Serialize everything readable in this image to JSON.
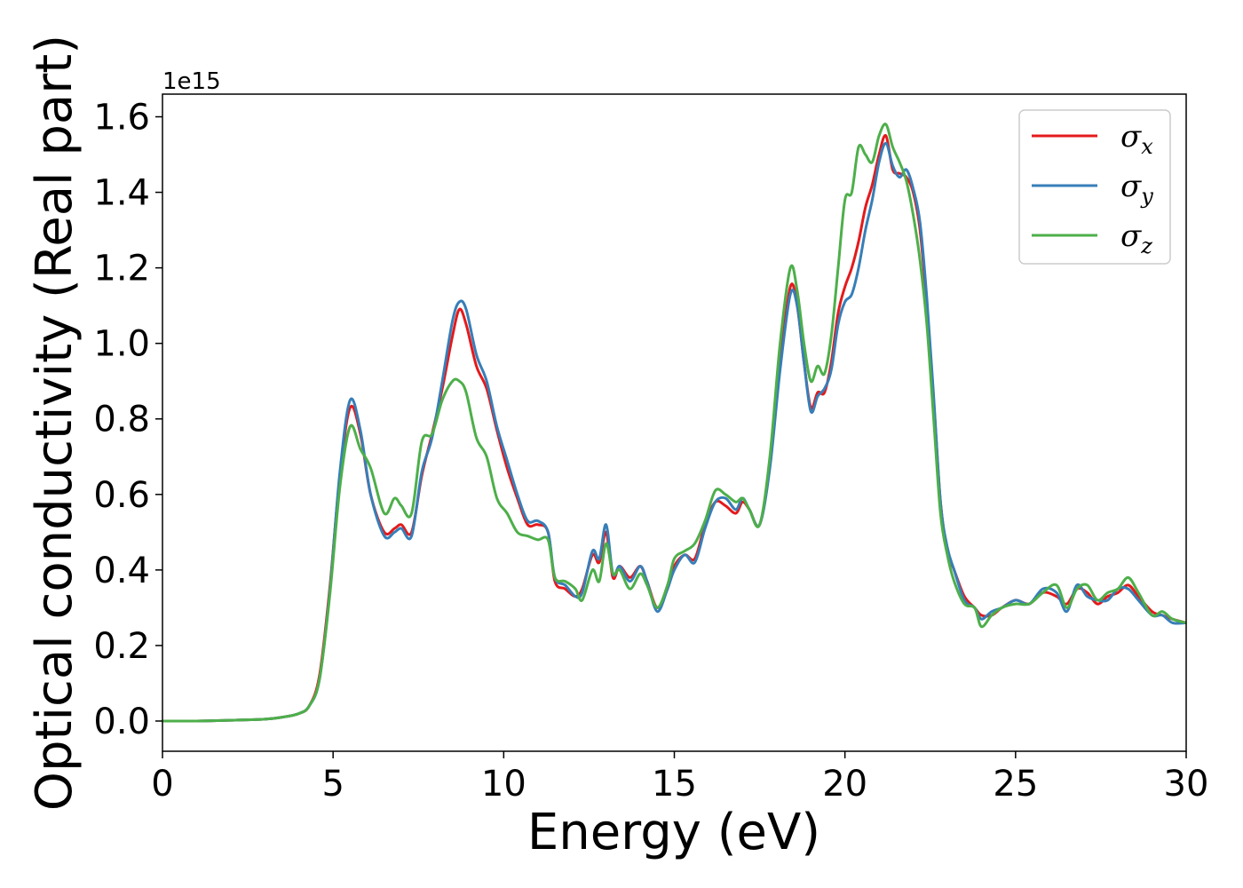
{
  "chart_data": {
    "type": "line",
    "xlabel": "Energy (eV)",
    "ylabel": "Optical conductivity (Real part)",
    "y_offset_label": "1e15",
    "xlim": [
      0,
      30
    ],
    "ylim": [
      -0.08,
      1.66
    ],
    "x_ticks": [
      0,
      5,
      10,
      15,
      20,
      25,
      30
    ],
    "x_tick_labels": [
      "0",
      "5",
      "10",
      "15",
      "20",
      "25",
      "30"
    ],
    "y_ticks": [
      0.0,
      0.2,
      0.4,
      0.6,
      0.8,
      1.0,
      1.2,
      1.4,
      1.6
    ],
    "y_tick_labels": [
      "0.0",
      "0.2",
      "0.4",
      "0.6",
      "0.8",
      "1.0",
      "1.2",
      "1.4",
      "1.6"
    ],
    "grid": false,
    "legend_position": "top-right",
    "x": [
      0,
      1,
      2,
      3,
      3.5,
      4,
      4.3,
      4.6,
      4.9,
      5.2,
      5.5,
      5.8,
      6.1,
      6.5,
      6.8,
      7.0,
      7.3,
      7.6,
      7.9,
      8.2,
      8.5,
      8.7,
      8.9,
      9.2,
      9.5,
      9.8,
      10.1,
      10.4,
      10.7,
      11.0,
      11.3,
      11.5,
      11.8,
      12.1,
      12.3,
      12.6,
      12.8,
      13.0,
      13.2,
      13.4,
      13.7,
      14.0,
      14.2,
      14.5,
      14.8,
      15.0,
      15.3,
      15.6,
      15.9,
      16.2,
      16.5,
      16.8,
      17.0,
      17.2,
      17.5,
      17.8,
      18.1,
      18.4,
      18.6,
      18.8,
      19.0,
      19.2,
      19.4,
      19.6,
      19.8,
      20.0,
      20.2,
      20.4,
      20.6,
      20.8,
      21.0,
      21.2,
      21.4,
      21.6,
      21.8,
      22.0,
      22.2,
      22.4,
      22.6,
      22.8,
      23.0,
      23.2,
      23.5,
      23.8,
      24.0,
      24.3,
      24.6,
      25.0,
      25.4,
      25.8,
      26.2,
      26.5,
      26.8,
      27.1,
      27.4,
      27.7,
      28.0,
      28.3,
      28.6,
      29.0,
      29.3,
      29.6,
      30.0
    ],
    "series": [
      {
        "name": "σx",
        "color": "#e41a1c",
        "values": [
          0.0,
          0.0,
          0.002,
          0.005,
          0.01,
          0.02,
          0.04,
          0.12,
          0.35,
          0.65,
          0.83,
          0.76,
          0.6,
          0.5,
          0.51,
          0.52,
          0.5,
          0.65,
          0.76,
          0.88,
          1.02,
          1.09,
          1.05,
          0.94,
          0.88,
          0.77,
          0.67,
          0.59,
          0.52,
          0.52,
          0.5,
          0.37,
          0.35,
          0.33,
          0.35,
          0.44,
          0.42,
          0.5,
          0.38,
          0.41,
          0.38,
          0.41,
          0.37,
          0.3,
          0.35,
          0.41,
          0.44,
          0.43,
          0.52,
          0.58,
          0.57,
          0.55,
          0.58,
          0.56,
          0.52,
          0.68,
          0.95,
          1.15,
          1.1,
          0.95,
          0.83,
          0.87,
          0.87,
          0.95,
          1.08,
          1.15,
          1.2,
          1.27,
          1.36,
          1.42,
          1.5,
          1.55,
          1.46,
          1.45,
          1.44,
          1.4,
          1.3,
          1.1,
          0.85,
          0.58,
          0.45,
          0.4,
          0.33,
          0.3,
          0.28,
          0.28,
          0.3,
          0.32,
          0.31,
          0.34,
          0.33,
          0.31,
          0.35,
          0.34,
          0.31,
          0.33,
          0.34,
          0.36,
          0.33,
          0.29,
          0.28,
          0.27,
          0.26
        ]
      },
      {
        "name": "σy",
        "color": "#377eb8",
        "values": [
          0.0,
          0.0,
          0.002,
          0.005,
          0.01,
          0.02,
          0.04,
          0.11,
          0.34,
          0.66,
          0.85,
          0.77,
          0.6,
          0.49,
          0.5,
          0.51,
          0.49,
          0.66,
          0.75,
          0.9,
          1.06,
          1.11,
          1.09,
          0.97,
          0.9,
          0.78,
          0.69,
          0.6,
          0.53,
          0.53,
          0.5,
          0.38,
          0.36,
          0.33,
          0.34,
          0.45,
          0.43,
          0.52,
          0.39,
          0.41,
          0.37,
          0.41,
          0.37,
          0.29,
          0.35,
          0.4,
          0.44,
          0.42,
          0.51,
          0.58,
          0.59,
          0.56,
          0.59,
          0.56,
          0.52,
          0.67,
          0.93,
          1.13,
          1.1,
          0.95,
          0.82,
          0.86,
          0.88,
          0.93,
          1.05,
          1.11,
          1.13,
          1.2,
          1.3,
          1.38,
          1.48,
          1.53,
          1.47,
          1.44,
          1.46,
          1.41,
          1.32,
          1.12,
          0.86,
          0.58,
          0.46,
          0.4,
          0.32,
          0.3,
          0.27,
          0.29,
          0.3,
          0.32,
          0.31,
          0.35,
          0.34,
          0.29,
          0.36,
          0.33,
          0.32,
          0.32,
          0.35,
          0.35,
          0.32,
          0.28,
          0.28,
          0.26,
          0.26
        ]
      },
      {
        "name": "σz",
        "color": "#4daf4a",
        "values": [
          0.0,
          0.0,
          0.002,
          0.005,
          0.01,
          0.02,
          0.04,
          0.11,
          0.33,
          0.62,
          0.78,
          0.72,
          0.67,
          0.55,
          0.59,
          0.57,
          0.55,
          0.74,
          0.76,
          0.85,
          0.9,
          0.9,
          0.87,
          0.75,
          0.7,
          0.59,
          0.55,
          0.5,
          0.49,
          0.48,
          0.48,
          0.38,
          0.37,
          0.35,
          0.32,
          0.4,
          0.37,
          0.47,
          0.39,
          0.4,
          0.35,
          0.39,
          0.36,
          0.3,
          0.36,
          0.43,
          0.45,
          0.47,
          0.53,
          0.61,
          0.6,
          0.58,
          0.59,
          0.56,
          0.52,
          0.7,
          1.0,
          1.2,
          1.14,
          1.0,
          0.9,
          0.94,
          0.92,
          1.02,
          1.2,
          1.38,
          1.4,
          1.52,
          1.5,
          1.48,
          1.55,
          1.58,
          1.52,
          1.48,
          1.43,
          1.34,
          1.22,
          1.05,
          0.8,
          0.55,
          0.44,
          0.37,
          0.31,
          0.3,
          0.25,
          0.28,
          0.3,
          0.31,
          0.31,
          0.34,
          0.36,
          0.3,
          0.35,
          0.36,
          0.32,
          0.34,
          0.35,
          0.38,
          0.34,
          0.28,
          0.29,
          0.27,
          0.26
        ]
      }
    ]
  },
  "legend": [
    {
      "symbol": "σ",
      "subscript": "x",
      "color": "#e41a1c"
    },
    {
      "symbol": "σ",
      "subscript": "y",
      "color": "#377eb8"
    },
    {
      "symbol": "σ",
      "subscript": "z",
      "color": "#4daf4a"
    }
  ]
}
